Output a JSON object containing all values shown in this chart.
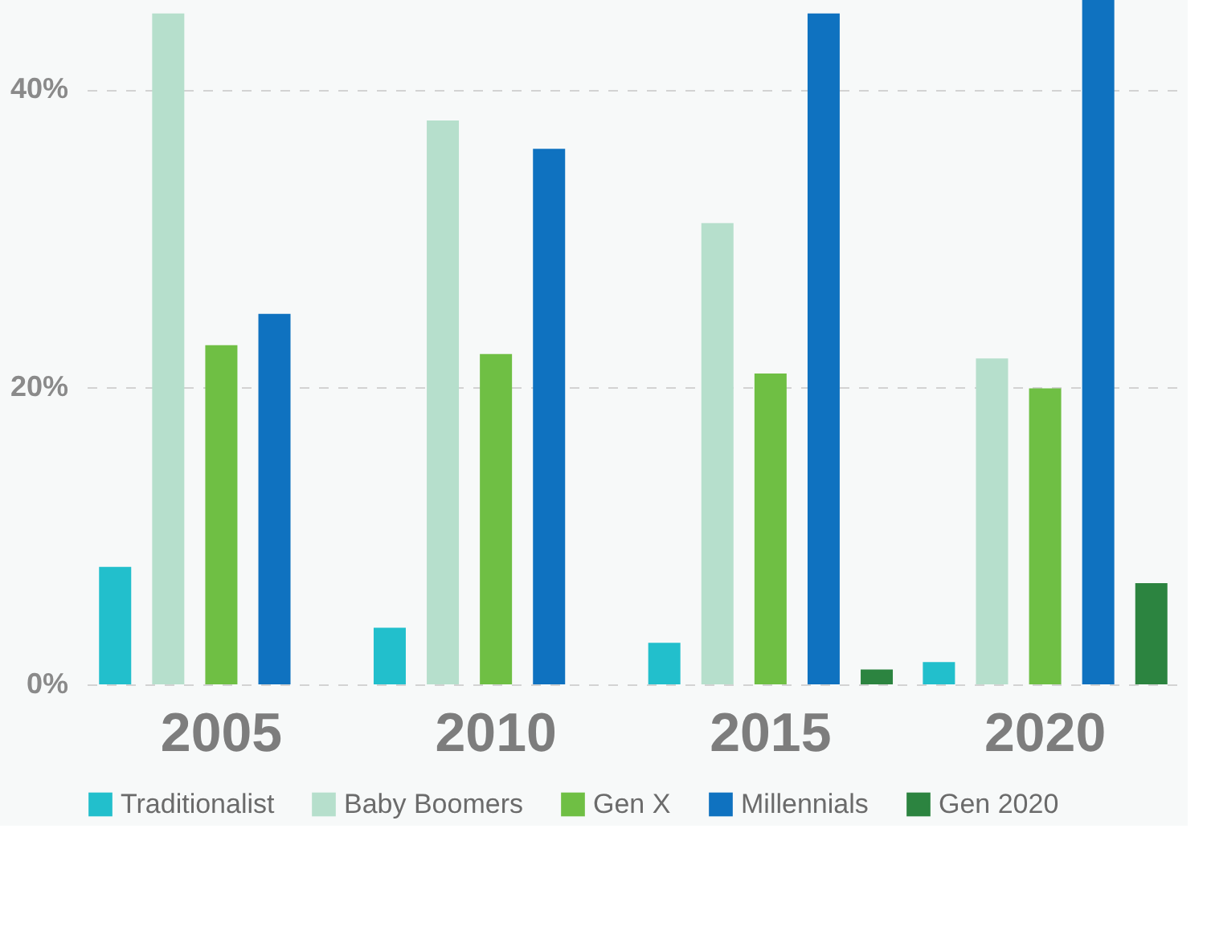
{
  "chart_data": {
    "type": "bar",
    "categories": [
      "2005",
      "2010",
      "2015",
      "2020"
    ],
    "series": [
      {
        "name": "Traditionalist",
        "color": "#22bfcc",
        "values": [
          7.9,
          3.8,
          2.8,
          1.5
        ]
      },
      {
        "name": "Baby Boomers",
        "color": "#b6dfcc",
        "values": [
          45.1,
          37.9,
          31,
          21.9
        ]
      },
      {
        "name": "Gen X",
        "color": "#6fbf44",
        "values": [
          22.8,
          22.2,
          20.9,
          19.9
        ]
      },
      {
        "name": "Millennials",
        "color": "#0f72c0",
        "values": [
          24.9,
          36.0,
          45.1,
          46
        ]
      },
      {
        "name": "Gen 2020",
        "color": "#2c8440",
        "values": [
          null,
          null,
          1.0,
          6.8
        ]
      }
    ],
    "ylim": [
      0,
      46
    ],
    "yticks": [
      {
        "value": 0,
        "label": "0%"
      },
      {
        "value": 20,
        "label": "20%"
      },
      {
        "value": 40,
        "label": "40%"
      }
    ],
    "grid": "y",
    "legend": "bottom"
  }
}
